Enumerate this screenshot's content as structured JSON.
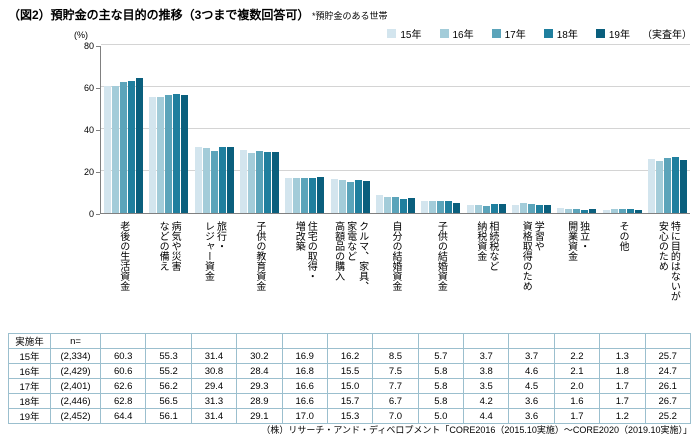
{
  "title": "（図2）預貯金の主な目的の推移（3つまで複数回答可）",
  "note": "*預貯金のある世帯",
  "legend": {
    "suffix": "（実査年）"
  },
  "axis": {
    "unit": "(%)",
    "yticks": [
      "0",
      "20",
      "40",
      "60",
      "80"
    ]
  },
  "chart_data": {
    "type": "bar",
    "title": "預貯金の主な目的の推移（3つまで複数回答可）",
    "ylabel": "(%)",
    "ylim": [
      0,
      80
    ],
    "grid": true,
    "legend_position": "top-right",
    "categories": [
      "老後の生活資金",
      "病気や災害\nなどの備え",
      "旅行・\nレジャー資金",
      "子供の教育資金",
      "住宅の取得・\n増改築",
      "クルマ、家具、\n家電など\n高額品の購入",
      "自分の結婚資金",
      "子供の結婚資金",
      "相続税など\n納税資金",
      "学習や\n資格取得のため",
      "独立・\n開業資金",
      "その他",
      "特に目的はないが\n安心のため"
    ],
    "series": [
      {
        "name": "15年",
        "n": "(2,334)",
        "color": "#d3e5ee",
        "values": [
          "60.3",
          "55.3",
          "31.4",
          "30.2",
          "16.9",
          "16.2",
          "8.5",
          "5.7",
          "3.7",
          "3.7",
          "2.2",
          "1.3",
          "25.7"
        ]
      },
      {
        "name": "16年",
        "n": "(2,429)",
        "color": "#a3ccd9",
        "values": [
          "60.6",
          "55.2",
          "30.8",
          "28.4",
          "16.8",
          "15.5",
          "7.5",
          "5.8",
          "3.8",
          "4.6",
          "2.1",
          "1.8",
          "24.7"
        ]
      },
      {
        "name": "17年",
        "n": "(2,401)",
        "color": "#5ba4ba",
        "values": [
          "62.6",
          "56.2",
          "29.4",
          "29.3",
          "16.6",
          "15.0",
          "7.7",
          "5.8",
          "3.5",
          "4.5",
          "2.0",
          "1.7",
          "26.1"
        ]
      },
      {
        "name": "18年",
        "n": "(2,446)",
        "color": "#1f7f9e",
        "values": [
          "62.8",
          "56.5",
          "31.3",
          "28.9",
          "16.6",
          "15.7",
          "6.7",
          "5.8",
          "4.2",
          "3.6",
          "1.6",
          "1.7",
          "26.7"
        ]
      },
      {
        "name": "19年",
        "n": "(2,452)",
        "color": "#0a5f7d",
        "values": [
          "64.4",
          "56.1",
          "31.4",
          "29.1",
          "17.0",
          "15.3",
          "7.0",
          "5.0",
          "4.4",
          "3.6",
          "1.7",
          "1.2",
          "25.2"
        ]
      }
    ]
  },
  "table": {
    "header_year": "実施年",
    "header_n": "n="
  },
  "footer": "（株）リサーチ・アンド・ディベロプメント「CORE2016（2015.10実施）～CORE2020（2019.10実施）」"
}
